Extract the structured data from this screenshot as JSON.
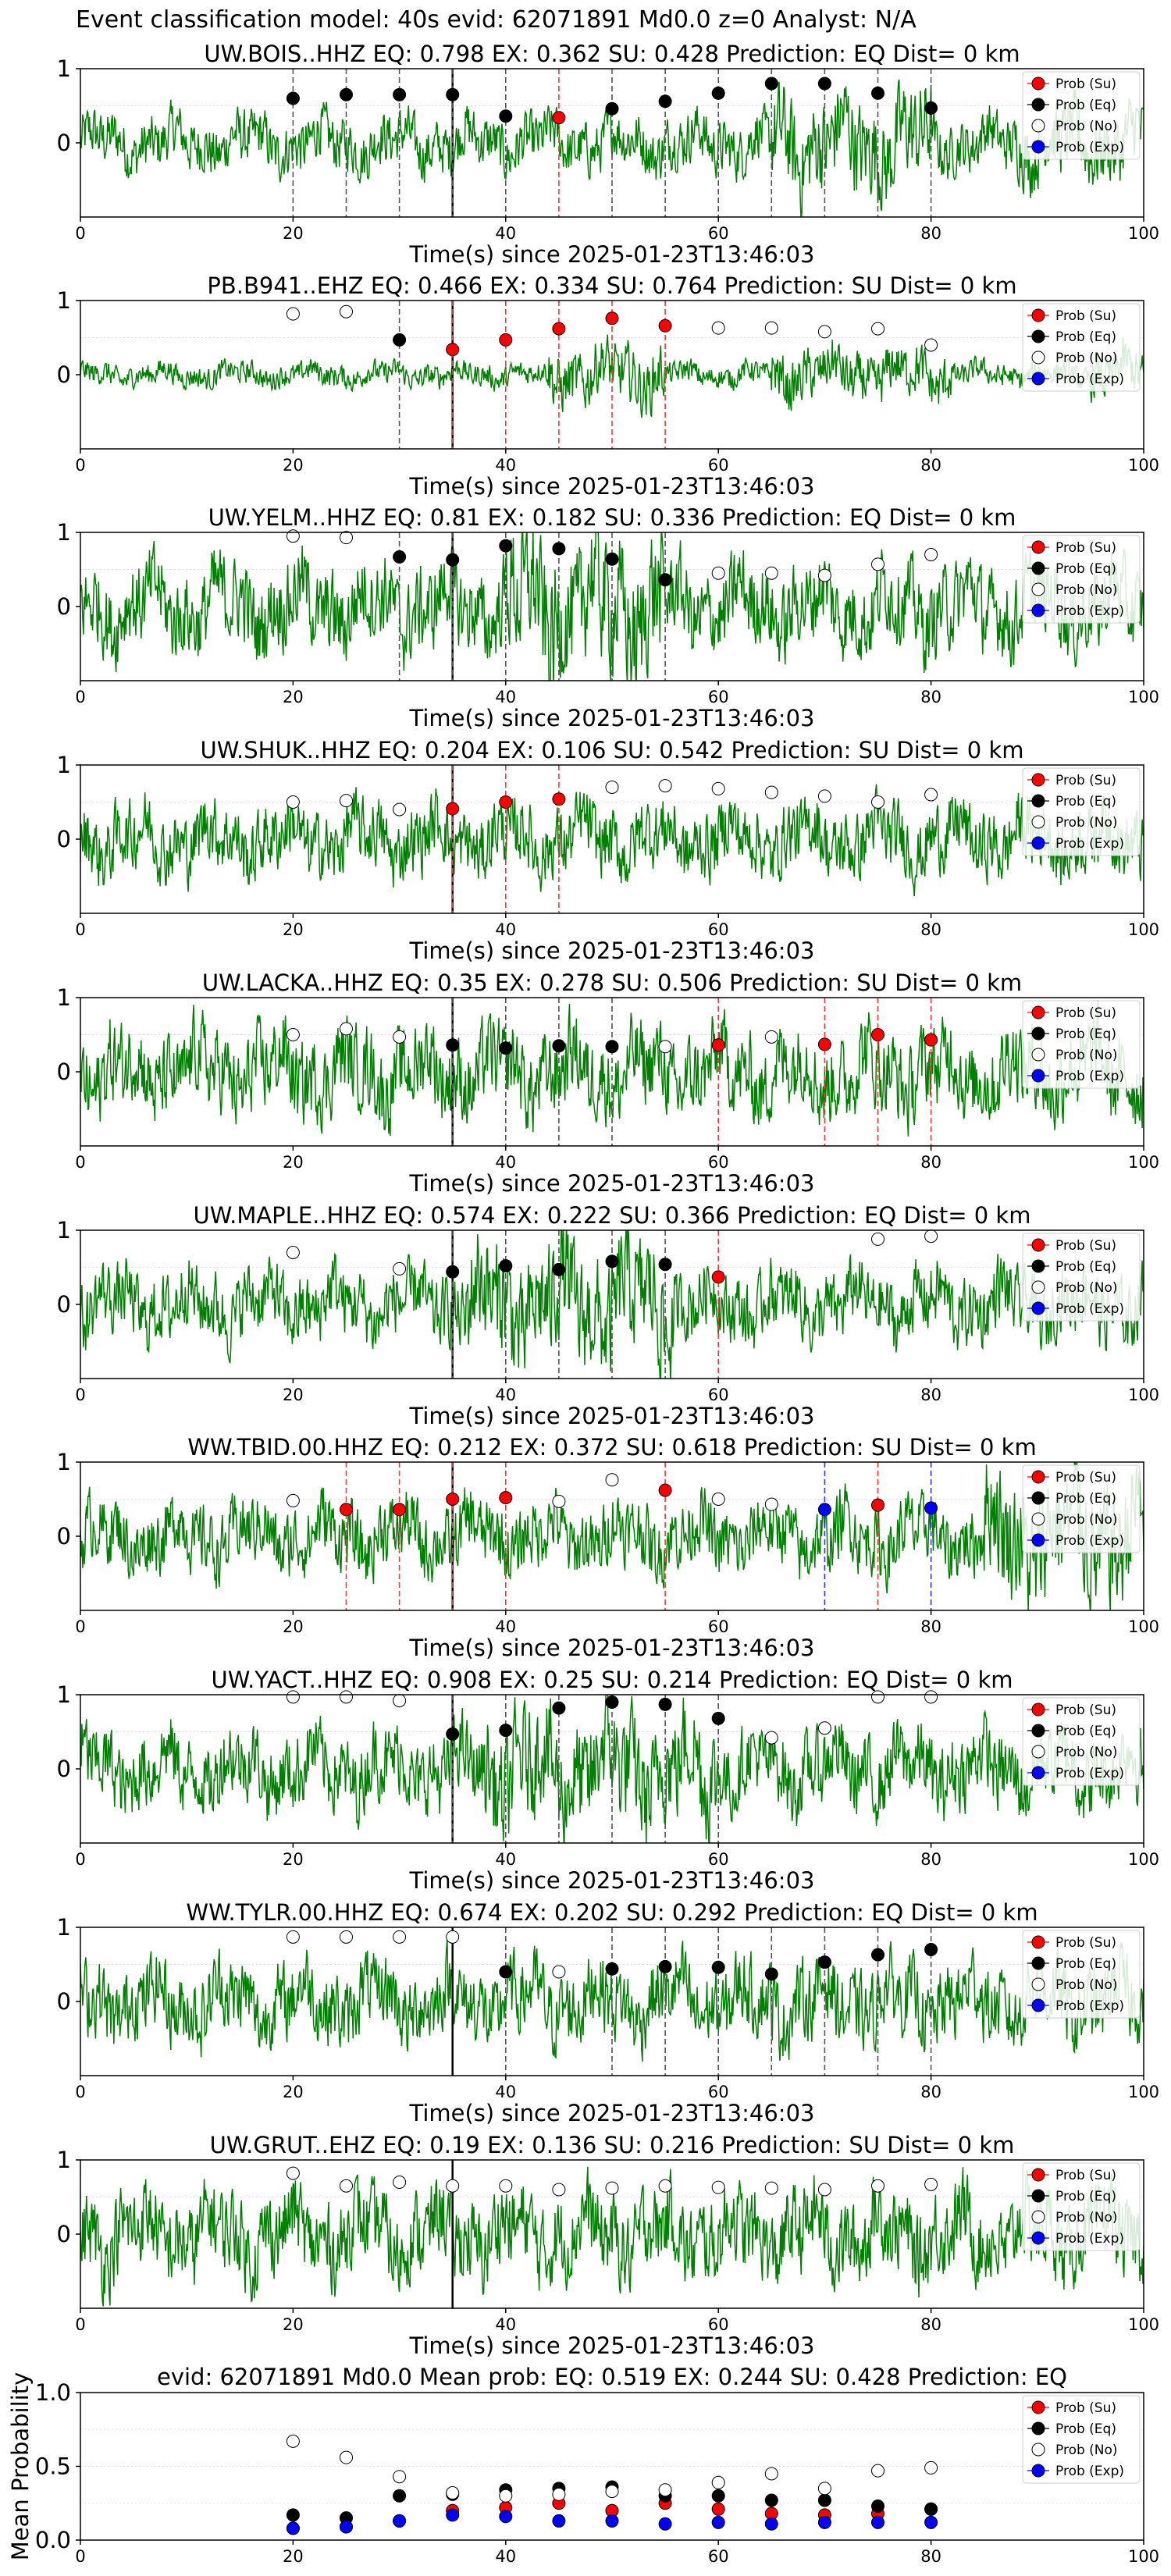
{
  "figure": {
    "suptitle": "Event classification model: 40s evid: 62071891 Md0.0 z=0 Analyst: N/A",
    "xlabel": "Time(s) since 2025-01-23T13:46:03",
    "legend": [
      "Prob (Su)",
      "Prob (Eq)",
      "Prob (No)",
      "Prob (Exp)"
    ],
    "colors": {
      "su": "#ff0000",
      "eq": "#000000",
      "no": "#ffffff",
      "exp": "#0000ff",
      "trace": "#008000"
    }
  },
  "chart_data": [
    {
      "type": "line",
      "title": "UW.BOIS..HHZ   EQ: 0.798  EX: 0.362  SU: 0.428   Prediction: EQ    Dist= 0 km",
      "xlim": [
        0,
        100
      ],
      "ylim": [
        -1,
        1
      ],
      "xticks": [
        "0",
        "20",
        "40",
        "60",
        "80",
        "100"
      ],
      "yticks": [
        "0",
        "1"
      ],
      "trace_amp": 0.35,
      "trace_burst": [
        [
          65,
          80,
          1.8
        ],
        [
          88,
          100,
          1.3
        ]
      ],
      "markers": [
        {
          "x": 20,
          "y": 0.6,
          "c": "eq"
        },
        {
          "x": 25,
          "y": 0.65,
          "c": "eq"
        },
        {
          "x": 30,
          "y": 0.65,
          "c": "eq"
        },
        {
          "x": 35,
          "y": 0.65,
          "c": "eq"
        },
        {
          "x": 40,
          "y": 0.36,
          "c": "eq"
        },
        {
          "x": 45,
          "y": 0.34,
          "c": "su"
        },
        {
          "x": 50,
          "y": 0.46,
          "c": "eq"
        },
        {
          "x": 55,
          "y": 0.56,
          "c": "eq"
        },
        {
          "x": 60,
          "y": 0.67,
          "c": "eq"
        },
        {
          "x": 65,
          "y": 0.8,
          "c": "eq"
        },
        {
          "x": 70,
          "y": 0.8,
          "c": "eq"
        },
        {
          "x": 75,
          "y": 0.67,
          "c": "eq"
        },
        {
          "x": 80,
          "y": 0.47,
          "c": "eq"
        }
      ]
    },
    {
      "type": "line",
      "title": "PB.B941..EHZ   EQ: 0.466  EX: 0.334  SU: 0.764   Prediction: SU    Dist= 0 km",
      "xlim": [
        0,
        100
      ],
      "ylim": [
        -1,
        1
      ],
      "xticks": [
        "0",
        "20",
        "40",
        "60",
        "80",
        "100"
      ],
      "yticks": [
        "0",
        "1"
      ],
      "trace_amp": 0.15,
      "trace_burst": [
        [
          44,
          55,
          2.5
        ],
        [
          65,
          82,
          2.2
        ],
        [
          95,
          100,
          2.0
        ]
      ],
      "markers": [
        {
          "x": 20,
          "y": 0.82,
          "c": "no"
        },
        {
          "x": 25,
          "y": 0.85,
          "c": "no"
        },
        {
          "x": 30,
          "y": 0.47,
          "c": "eq"
        },
        {
          "x": 35,
          "y": 0.34,
          "c": "su"
        },
        {
          "x": 40,
          "y": 0.47,
          "c": "su"
        },
        {
          "x": 45,
          "y": 0.62,
          "c": "su"
        },
        {
          "x": 50,
          "y": 0.76,
          "c": "su"
        },
        {
          "x": 55,
          "y": 0.66,
          "c": "su"
        },
        {
          "x": 60,
          "y": 0.63,
          "c": "no"
        },
        {
          "x": 65,
          "y": 0.63,
          "c": "no"
        },
        {
          "x": 70,
          "y": 0.58,
          "c": "no"
        },
        {
          "x": 75,
          "y": 0.62,
          "c": "no"
        },
        {
          "x": 80,
          "y": 0.4,
          "c": "no"
        }
      ]
    },
    {
      "type": "line",
      "title": "UW.YELM..HHZ   EQ: 0.81  EX: 0.182  SU: 0.336   Prediction: EQ    Dist= 0 km",
      "xlim": [
        0,
        100
      ],
      "ylim": [
        -1,
        1
      ],
      "xticks": [
        "0",
        "20",
        "40",
        "60",
        "80",
        "100"
      ],
      "yticks": [
        "0",
        "1"
      ],
      "trace_amp": 0.55,
      "trace_burst": [
        [
          40,
          55,
          1.6
        ]
      ],
      "markers": [
        {
          "x": 20,
          "y": 0.95,
          "c": "no"
        },
        {
          "x": 25,
          "y": 0.93,
          "c": "no"
        },
        {
          "x": 30,
          "y": 0.67,
          "c": "eq"
        },
        {
          "x": 35,
          "y": 0.63,
          "c": "eq"
        },
        {
          "x": 40,
          "y": 0.82,
          "c": "eq"
        },
        {
          "x": 45,
          "y": 0.78,
          "c": "eq"
        },
        {
          "x": 50,
          "y": 0.64,
          "c": "eq"
        },
        {
          "x": 55,
          "y": 0.36,
          "c": "eq"
        },
        {
          "x": 60,
          "y": 0.45,
          "c": "no"
        },
        {
          "x": 65,
          "y": 0.45,
          "c": "no"
        },
        {
          "x": 70,
          "y": 0.42,
          "c": "no"
        },
        {
          "x": 75,
          "y": 0.57,
          "c": "no"
        },
        {
          "x": 80,
          "y": 0.7,
          "c": "no"
        }
      ]
    },
    {
      "type": "line",
      "title": "UW.SHUK..HHZ   EQ: 0.204  EX: 0.106  SU: 0.542   Prediction: SU    Dist= 0 km",
      "xlim": [
        0,
        100
      ],
      "ylim": [
        -1,
        1
      ],
      "xticks": [
        "0",
        "20",
        "40",
        "60",
        "80",
        "100"
      ],
      "yticks": [
        "0",
        "1"
      ],
      "trace_amp": 0.45,
      "trace_burst": [],
      "markers": [
        {
          "x": 20,
          "y": 0.5,
          "c": "no"
        },
        {
          "x": 25,
          "y": 0.52,
          "c": "no"
        },
        {
          "x": 30,
          "y": 0.4,
          "c": "no"
        },
        {
          "x": 35,
          "y": 0.41,
          "c": "su"
        },
        {
          "x": 40,
          "y": 0.5,
          "c": "su"
        },
        {
          "x": 45,
          "y": 0.54,
          "c": "su"
        },
        {
          "x": 50,
          "y": 0.7,
          "c": "no"
        },
        {
          "x": 55,
          "y": 0.72,
          "c": "no"
        },
        {
          "x": 60,
          "y": 0.68,
          "c": "no"
        },
        {
          "x": 65,
          "y": 0.63,
          "c": "no"
        },
        {
          "x": 70,
          "y": 0.58,
          "c": "no"
        },
        {
          "x": 75,
          "y": 0.5,
          "c": "no"
        },
        {
          "x": 80,
          "y": 0.6,
          "c": "no"
        }
      ]
    },
    {
      "type": "line",
      "title": "UW.LACKA..HHZ   EQ: 0.35  EX: 0.278  SU: 0.506   Prediction: SU    Dist= 0 km",
      "xlim": [
        0,
        100
      ],
      "ylim": [
        -1,
        1
      ],
      "xticks": [
        "0",
        "20",
        "40",
        "60",
        "80",
        "100"
      ],
      "yticks": [
        "0",
        "1"
      ],
      "trace_amp": 0.55,
      "trace_burst": [],
      "markers": [
        {
          "x": 20,
          "y": 0.5,
          "c": "no"
        },
        {
          "x": 25,
          "y": 0.58,
          "c": "no"
        },
        {
          "x": 30,
          "y": 0.47,
          "c": "no"
        },
        {
          "x": 35,
          "y": 0.36,
          "c": "eq"
        },
        {
          "x": 40,
          "y": 0.32,
          "c": "eq"
        },
        {
          "x": 45,
          "y": 0.35,
          "c": "eq"
        },
        {
          "x": 50,
          "y": 0.34,
          "c": "eq"
        },
        {
          "x": 55,
          "y": 0.34,
          "c": "no"
        },
        {
          "x": 60,
          "y": 0.36,
          "c": "su"
        },
        {
          "x": 65,
          "y": 0.47,
          "c": "no"
        },
        {
          "x": 70,
          "y": 0.37,
          "c": "su"
        },
        {
          "x": 75,
          "y": 0.5,
          "c": "su"
        },
        {
          "x": 80,
          "y": 0.43,
          "c": "su"
        }
      ]
    },
    {
      "type": "line",
      "title": "UW.MAPLE..HHZ   EQ: 0.574  EX: 0.222  SU: 0.366   Prediction: EQ    Dist= 0 km",
      "xlim": [
        0,
        100
      ],
      "ylim": [
        -1,
        1
      ],
      "xticks": [
        "0",
        "20",
        "40",
        "60",
        "80",
        "100"
      ],
      "yticks": [
        "0",
        "1"
      ],
      "trace_amp": 0.45,
      "trace_burst": [
        [
          36,
          56,
          1.7
        ]
      ],
      "markers": [
        {
          "x": 20,
          "y": 0.7,
          "c": "no"
        },
        {
          "x": 30,
          "y": 0.48,
          "c": "no"
        },
        {
          "x": 35,
          "y": 0.44,
          "c": "eq"
        },
        {
          "x": 40,
          "y": 0.52,
          "c": "eq"
        },
        {
          "x": 45,
          "y": 0.47,
          "c": "eq"
        },
        {
          "x": 50,
          "y": 0.58,
          "c": "eq"
        },
        {
          "x": 55,
          "y": 0.54,
          "c": "eq"
        },
        {
          "x": 60,
          "y": 0.37,
          "c": "su"
        },
        {
          "x": 75,
          "y": 0.88,
          "c": "no"
        },
        {
          "x": 80,
          "y": 0.92,
          "c": "no"
        }
      ]
    },
    {
      "type": "line",
      "title": "WW.TBID.00.HHZ   EQ: 0.212  EX: 0.372  SU: 0.618   Prediction: SU    Dist= 0 km",
      "xlim": [
        0,
        100
      ],
      "ylim": [
        -1,
        1
      ],
      "xticks": [
        "0",
        "20",
        "40",
        "60",
        "80",
        "100"
      ],
      "yticks": [
        "0",
        "1"
      ],
      "trace_amp": 0.45,
      "trace_burst": [
        [
          85,
          100,
          1.8
        ]
      ],
      "markers": [
        {
          "x": 20,
          "y": 0.48,
          "c": "no"
        },
        {
          "x": 25,
          "y": 0.36,
          "c": "su"
        },
        {
          "x": 30,
          "y": 0.36,
          "c": "su"
        },
        {
          "x": 35,
          "y": 0.5,
          "c": "su"
        },
        {
          "x": 40,
          "y": 0.52,
          "c": "su"
        },
        {
          "x": 45,
          "y": 0.47,
          "c": "no"
        },
        {
          "x": 50,
          "y": 0.76,
          "c": "no"
        },
        {
          "x": 55,
          "y": 0.62,
          "c": "su"
        },
        {
          "x": 60,
          "y": 0.5,
          "c": "no"
        },
        {
          "x": 65,
          "y": 0.43,
          "c": "no"
        },
        {
          "x": 70,
          "y": 0.36,
          "c": "exp"
        },
        {
          "x": 75,
          "y": 0.42,
          "c": "su"
        },
        {
          "x": 80,
          "y": 0.38,
          "c": "exp"
        }
      ]
    },
    {
      "type": "line",
      "title": "UW.YACT..HHZ   EQ: 0.908  EX: 0.25  SU: 0.214   Prediction: EQ    Dist= 0 km",
      "xlim": [
        0,
        100
      ],
      "ylim": [
        -1,
        1
      ],
      "xticks": [
        "0",
        "20",
        "40",
        "60",
        "80",
        "100"
      ],
      "yticks": [
        "0",
        "1"
      ],
      "trace_amp": 0.5,
      "trace_burst": [
        [
          38,
          60,
          1.5
        ]
      ],
      "markers": [
        {
          "x": 20,
          "y": 0.97,
          "c": "no"
        },
        {
          "x": 25,
          "y": 0.97,
          "c": "no"
        },
        {
          "x": 30,
          "y": 0.92,
          "c": "no"
        },
        {
          "x": 35,
          "y": 0.47,
          "c": "eq"
        },
        {
          "x": 40,
          "y": 0.52,
          "c": "eq"
        },
        {
          "x": 45,
          "y": 0.82,
          "c": "eq"
        },
        {
          "x": 50,
          "y": 0.9,
          "c": "eq"
        },
        {
          "x": 55,
          "y": 0.87,
          "c": "eq"
        },
        {
          "x": 60,
          "y": 0.68,
          "c": "eq"
        },
        {
          "x": 65,
          "y": 0.42,
          "c": "no"
        },
        {
          "x": 70,
          "y": 0.55,
          "c": "no"
        },
        {
          "x": 75,
          "y": 0.97,
          "c": "no"
        },
        {
          "x": 80,
          "y": 0.97,
          "c": "no"
        }
      ]
    },
    {
      "type": "line",
      "title": "WW.TYLR.00.HHZ   EQ: 0.674  EX: 0.202  SU: 0.292   Prediction: EQ    Dist= 0 km",
      "xlim": [
        0,
        100
      ],
      "ylim": [
        -1,
        1
      ],
      "xticks": [
        "0",
        "20",
        "40",
        "60",
        "80",
        "100"
      ],
      "yticks": [
        "0",
        "1"
      ],
      "trace_amp": 0.5,
      "trace_burst": [],
      "markers": [
        {
          "x": 20,
          "y": 0.87,
          "c": "no"
        },
        {
          "x": 25,
          "y": 0.87,
          "c": "no"
        },
        {
          "x": 30,
          "y": 0.87,
          "c": "no"
        },
        {
          "x": 35,
          "y": 0.87,
          "c": "no"
        },
        {
          "x": 40,
          "y": 0.4,
          "c": "eq"
        },
        {
          "x": 45,
          "y": 0.4,
          "c": "no"
        },
        {
          "x": 50,
          "y": 0.44,
          "c": "eq"
        },
        {
          "x": 55,
          "y": 0.47,
          "c": "eq"
        },
        {
          "x": 60,
          "y": 0.46,
          "c": "eq"
        },
        {
          "x": 65,
          "y": 0.37,
          "c": "eq"
        },
        {
          "x": 70,
          "y": 0.53,
          "c": "eq"
        },
        {
          "x": 75,
          "y": 0.63,
          "c": "eq"
        },
        {
          "x": 80,
          "y": 0.7,
          "c": "eq"
        }
      ]
    },
    {
      "type": "line",
      "title": "UW.GRUT..EHZ   EQ: 0.19  EX: 0.136  SU: 0.216   Prediction: SU    Dist= 0 km",
      "xlim": [
        0,
        100
      ],
      "ylim": [
        -1,
        1
      ],
      "xticks": [
        "0",
        "20",
        "40",
        "60",
        "80",
        "100"
      ],
      "yticks": [
        "0",
        "1"
      ],
      "trace_amp": 0.55,
      "trace_burst": [],
      "markers": [
        {
          "x": 20,
          "y": 0.82,
          "c": "no"
        },
        {
          "x": 25,
          "y": 0.65,
          "c": "no"
        },
        {
          "x": 30,
          "y": 0.7,
          "c": "no"
        },
        {
          "x": 35,
          "y": 0.65,
          "c": "no"
        },
        {
          "x": 40,
          "y": 0.65,
          "c": "no"
        },
        {
          "x": 45,
          "y": 0.6,
          "c": "no"
        },
        {
          "x": 50,
          "y": 0.62,
          "c": "no"
        },
        {
          "x": 55,
          "y": 0.65,
          "c": "no"
        },
        {
          "x": 60,
          "y": 0.63,
          "c": "no"
        },
        {
          "x": 65,
          "y": 0.62,
          "c": "no"
        },
        {
          "x": 70,
          "y": 0.6,
          "c": "no"
        },
        {
          "x": 75,
          "y": 0.65,
          "c": "no"
        },
        {
          "x": 80,
          "y": 0.67,
          "c": "no"
        }
      ]
    },
    {
      "type": "scatter",
      "title": "evid: 62071891  Md0.0   Mean prob:   EQ: 0.519  EX: 0.244  SU: 0.428   Prediction: EQ",
      "ylabel": "Mean Probability",
      "xlim": [
        0,
        100
      ],
      "ylim": [
        0,
        1
      ],
      "xticks": [
        "0",
        "20",
        "40",
        "60",
        "80",
        "100"
      ],
      "yticks": [
        "0.0",
        "0.5",
        "1.0"
      ],
      "x": [
        20,
        25,
        30,
        35,
        40,
        45,
        50,
        55,
        60,
        65,
        70,
        75,
        80
      ],
      "series": [
        {
          "name": "Prob (Su)",
          "c": "su",
          "values": [
            0.08,
            0.09,
            0.13,
            0.2,
            0.22,
            0.25,
            0.2,
            0.25,
            0.21,
            0.18,
            0.17,
            0.18,
            0.21
          ]
        },
        {
          "name": "Prob (Eq)",
          "c": "eq",
          "values": [
            0.17,
            0.15,
            0.3,
            0.31,
            0.34,
            0.35,
            0.36,
            0.3,
            0.3,
            0.27,
            0.27,
            0.23,
            0.21
          ]
        },
        {
          "name": "Prob (No)",
          "c": "no",
          "values": [
            0.67,
            0.56,
            0.43,
            0.32,
            0.3,
            0.31,
            0.33,
            0.34,
            0.39,
            0.45,
            0.35,
            0.47,
            0.49
          ]
        },
        {
          "name": "Prob (Exp)",
          "c": "exp",
          "values": [
            0.08,
            0.09,
            0.13,
            0.17,
            0.16,
            0.13,
            0.13,
            0.11,
            0.12,
            0.11,
            0.12,
            0.12,
            0.12
          ]
        }
      ]
    }
  ]
}
